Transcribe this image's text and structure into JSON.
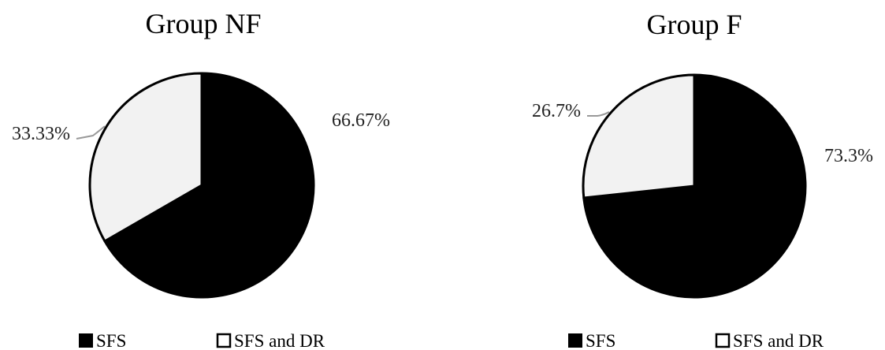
{
  "chart_data": [
    {
      "type": "pie",
      "title": "Group NF",
      "categories": [
        "SFS",
        "SFS and DR"
      ],
      "values": [
        66.67,
        33.33
      ],
      "data_labels": [
        "66.67%",
        "33.33%"
      ],
      "colors": [
        "#000000",
        "#f2f2f2"
      ],
      "legend": {
        "position": "bottom",
        "entries": [
          "SFS",
          "SFS and DR"
        ]
      }
    },
    {
      "type": "pie",
      "title": "Group F",
      "categories": [
        "SFS",
        "SFS and DR"
      ],
      "values": [
        73.3,
        26.7
      ],
      "data_labels": [
        "73.3%",
        "26.7%"
      ],
      "colors": [
        "#000000",
        "#f2f2f2"
      ],
      "legend": {
        "position": "bottom",
        "entries": [
          "SFS",
          "SFS and DR"
        ]
      }
    }
  ]
}
